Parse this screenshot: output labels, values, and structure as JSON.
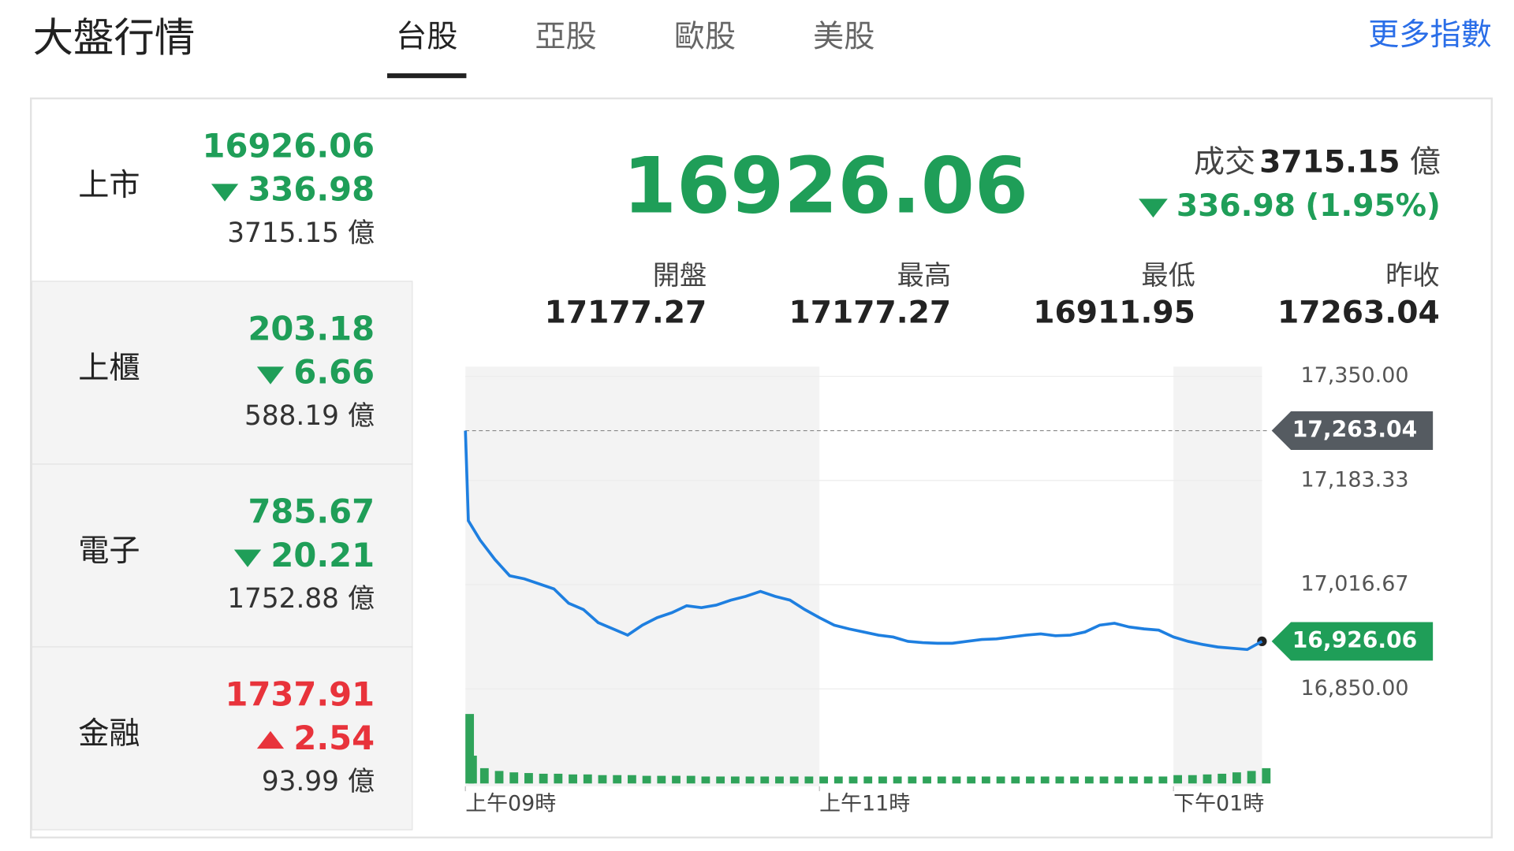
{
  "header": {
    "title": "大盤行情",
    "tabs": [
      "台股",
      "亞股",
      "歐股",
      "美股"
    ],
    "active_tab": 0,
    "more_link": "更多指數"
  },
  "markets": [
    {
      "name": "上市",
      "price": "16926.06",
      "change": "336.98",
      "direction": "down",
      "volume": "3715.15 億"
    },
    {
      "name": "上櫃",
      "price": "203.18",
      "change": "6.66",
      "direction": "down",
      "volume": "588.19 億"
    },
    {
      "name": "電子",
      "price": "785.67",
      "change": "20.21",
      "direction": "down",
      "volume": "1752.88 億"
    },
    {
      "name": "金融",
      "price": "1737.91",
      "change": "2.54",
      "direction": "up",
      "volume": "93.99 億"
    }
  ],
  "summary": {
    "price": "16926.06",
    "turnover_label": "成交",
    "turnover": "3715.15",
    "turnover_unit": "億",
    "change": "336.98",
    "change_pct": "(1.95%)",
    "direction": "down",
    "stats": [
      {
        "label": "開盤",
        "value": "17177.27"
      },
      {
        "label": "最高",
        "value": "17177.27"
      },
      {
        "label": "最低",
        "value": "16911.95"
      },
      {
        "label": "昨收",
        "value": "17263.04"
      }
    ]
  },
  "chart_data": {
    "type": "line",
    "x": [
      0,
      1,
      5,
      10,
      15,
      20,
      25,
      30,
      35,
      40,
      45,
      50,
      55,
      60,
      65,
      70,
      75,
      80,
      85,
      90,
      95,
      100,
      105,
      110,
      115,
      120,
      125,
      130,
      135,
      140,
      145,
      150,
      155,
      160,
      165,
      170,
      175,
      180,
      185,
      190,
      195,
      200,
      205,
      210,
      215,
      220,
      225,
      230,
      235,
      240,
      245,
      250,
      255,
      260,
      265,
      270
    ],
    "series": [
      {
        "color": "#1e7fe0",
        "values": [
          17263,
          17119,
          17088,
          17057,
          17031,
          17026,
          17018,
          17010,
          16987,
          16977,
          16956,
          16946,
          16936,
          16952,
          16964,
          16972,
          16983,
          16980,
          16984,
          16992,
          16998,
          17006,
          16998,
          16992,
          16977,
          16964,
          16952,
          16946,
          16941,
          16936,
          16933,
          16926,
          16924,
          16923,
          16923,
          16926,
          16929,
          16930,
          16933,
          16936,
          16938,
          16935,
          16936,
          16941,
          16952,
          16955,
          16949,
          16946,
          16944,
          16933,
          16926,
          16921,
          16917,
          16915,
          16913,
          16926.06
        ]
      }
    ],
    "volume": {
      "color": "#2fa35a",
      "values": [
        100,
        40,
        22,
        18,
        16,
        15,
        14,
        14,
        13,
        13,
        12,
        12,
        12,
        11,
        11,
        11,
        11,
        10,
        10,
        10,
        10,
        10,
        10,
        10,
        10,
        10,
        10,
        10,
        10,
        10,
        10,
        10,
        10,
        10,
        10,
        10,
        10,
        10,
        10,
        10,
        10,
        10,
        10,
        10,
        10,
        10,
        10,
        10,
        10,
        12,
        12,
        13,
        14,
        16,
        18,
        22
      ]
    },
    "xlim": [
      0,
      270
    ],
    "xticks": [
      {
        "value": 0,
        "label": "上午09時"
      },
      {
        "value": 120,
        "label": "上午11時"
      },
      {
        "value": 240,
        "label": "下午01時"
      }
    ],
    "ylim": [
      16850,
      17350
    ],
    "yticks": [
      {
        "value": 17350,
        "label": "17,350.00"
      },
      {
        "value": 17183.33,
        "label": "17,183.33"
      },
      {
        "value": 17016.67,
        "label": "17,016.67"
      },
      {
        "value": 16850,
        "label": "16,850.00"
      }
    ],
    "annotations": [
      {
        "value": 17263.04,
        "label": "17,263.04",
        "color": "#555b61"
      },
      {
        "value": 16926.06,
        "label": "16,926.06",
        "color": "#1f9e58"
      }
    ]
  }
}
